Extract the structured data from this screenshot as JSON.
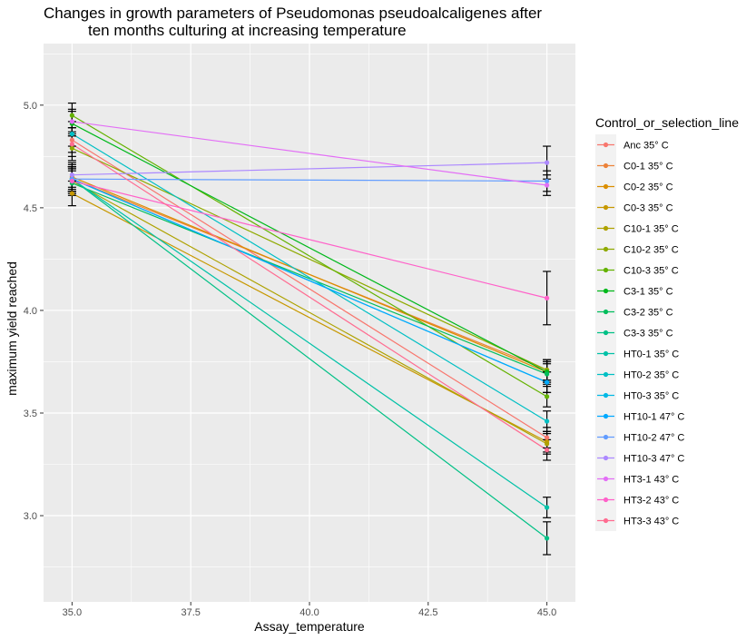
{
  "chart_data": {
    "type": "line",
    "title_lines": [
      "Changes in growth parameters of Pseudomonas pseudoalcaligenes after",
      "ten months culturing at increasing temperature"
    ],
    "xlabel": "Assay_temperature",
    "ylabel": "maximum yield reached",
    "xlim": [
      34.4,
      45.6
    ],
    "ylim": [
      2.58,
      5.3
    ],
    "x_ticks": [
      35.0,
      37.5,
      40.0,
      42.5,
      45.0
    ],
    "x_tick_labels": [
      "35.0",
      "37.5",
      "40.0",
      "42.5",
      "45.0"
    ],
    "y_ticks": [
      3.0,
      3.5,
      4.0,
      4.5,
      5.0
    ],
    "y_tick_labels": [
      "3.0",
      "3.5",
      "4.0",
      "4.5",
      "5.0"
    ],
    "grid": true,
    "legend": {
      "title": "Control_or_selection_line",
      "position": "right"
    },
    "x": [
      35.0,
      45.0
    ],
    "series": [
      {
        "name": "Anc 35° C",
        "color": "#F8766D",
        "values": [
          4.83,
          3.38
        ],
        "err": [
          0.06,
          0.05
        ]
      },
      {
        "name": "C0-1 35° C",
        "color": "#EC8239",
        "values": [
          4.64,
          3.71
        ],
        "err": [
          0.06,
          0.05
        ]
      },
      {
        "name": "C0-2 35° C",
        "color": "#DB8E00",
        "values": [
          4.65,
          3.7
        ],
        "err": [
          0.06,
          0.05
        ]
      },
      {
        "name": "C0-3 35° C",
        "color": "#C79800",
        "values": [
          4.57,
          3.36
        ],
        "err": [
          0.06,
          0.05
        ]
      },
      {
        "name": "C10-1 35° C",
        "color": "#AEA200",
        "values": [
          4.63,
          3.35
        ],
        "err": [
          0.06,
          0.05
        ]
      },
      {
        "name": "C10-2 35° C",
        "color": "#8FAA00",
        "values": [
          4.79,
          3.71
        ],
        "err": [
          0.06,
          0.05
        ]
      },
      {
        "name": "C10-3 35° C",
        "color": "#64B200",
        "values": [
          4.95,
          3.58
        ],
        "err": [
          0.06,
          0.05
        ]
      },
      {
        "name": "C3-1 35° C",
        "color": "#00B81B",
        "values": [
          4.91,
          3.7
        ],
        "err": [
          0.06,
          0.05
        ]
      },
      {
        "name": "C3-2 35° C",
        "color": "#00BD5C",
        "values": [
          4.62,
          3.69
        ],
        "err": [
          0.06,
          0.05
        ]
      },
      {
        "name": "C3-3 35° C",
        "color": "#00C085",
        "values": [
          4.64,
          2.89
        ],
        "err": [
          0.06,
          0.08
        ]
      },
      {
        "name": "HT0-1 35° C",
        "color": "#00C1A7",
        "values": [
          4.64,
          3.04
        ],
        "err": [
          0.06,
          0.05
        ]
      },
      {
        "name": "HT0-2 35° C",
        "color": "#00BFC4",
        "values": [
          4.86,
          3.46
        ],
        "err": [
          0.06,
          0.05
        ]
      },
      {
        "name": "HT0-3 35° C",
        "color": "#00B8E5",
        "values": [
          4.64,
          3.65
        ],
        "err": [
          0.06,
          0.05
        ]
      },
      {
        "name": "HT10-1 47° C",
        "color": "#00A9FF",
        "values": [
          4.64,
          3.65
        ],
        "err": [
          0.06,
          0.05
        ]
      },
      {
        "name": "HT10-2 47° C",
        "color": "#619CFF",
        "values": [
          4.64,
          4.63
        ],
        "err": [
          0.06,
          0.05
        ]
      },
      {
        "name": "HT10-3 47° C",
        "color": "#AC88FF",
        "values": [
          4.66,
          4.72
        ],
        "err": [
          0.06,
          0.08
        ]
      },
      {
        "name": "HT3-1 43° C",
        "color": "#E36EF6",
        "values": [
          4.92,
          4.61
        ],
        "err": [
          0.06,
          0.05
        ]
      },
      {
        "name": "HT3-2 43° C",
        "color": "#FF61C9",
        "values": [
          4.63,
          4.06
        ],
        "err": [
          0.06,
          0.13
        ]
      },
      {
        "name": "HT3-3 43° C",
        "color": "#FF6C91",
        "values": [
          4.81,
          3.32
        ],
        "err": [
          0.06,
          0.05
        ]
      }
    ]
  }
}
